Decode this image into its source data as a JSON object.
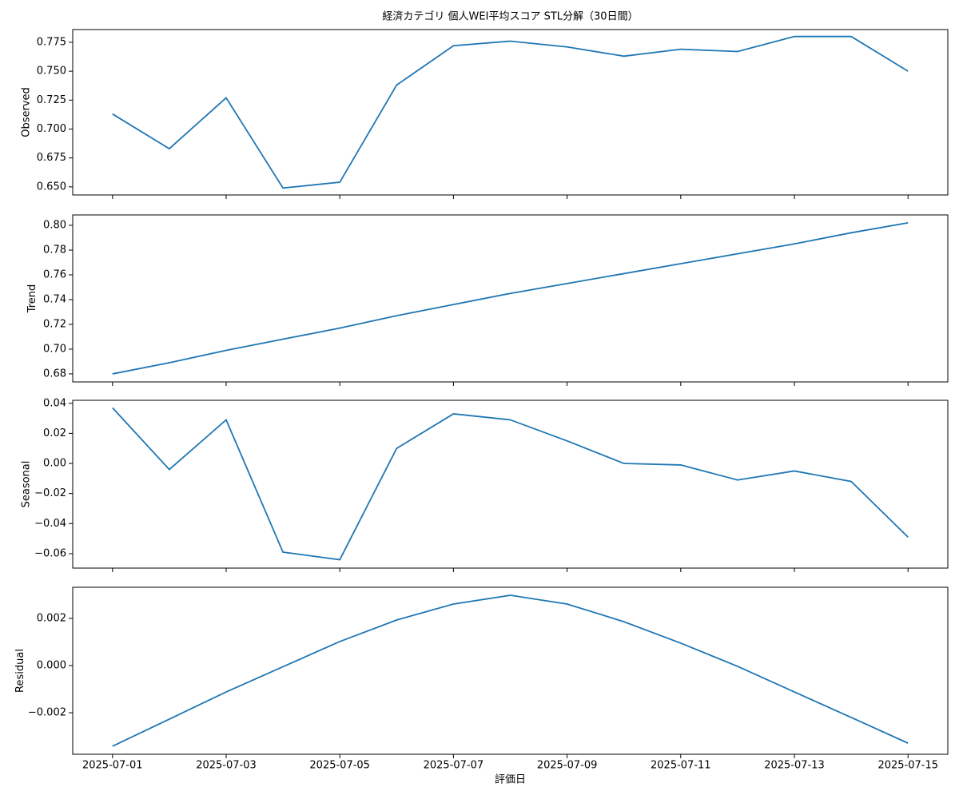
{
  "chart_data": [
    {
      "type": "line",
      "title": "経済カテゴリ 個人WEI平均スコア STL分解（30日間）",
      "ylabel": "Observed",
      "x": [
        "2025-07-01",
        "2025-07-02",
        "2025-07-03",
        "2025-07-04",
        "2025-07-05",
        "2025-07-06",
        "2025-07-07",
        "2025-07-08",
        "2025-07-09",
        "2025-07-10",
        "2025-07-11",
        "2025-07-12",
        "2025-07-13",
        "2025-07-14",
        "2025-07-15"
      ],
      "values": [
        0.713,
        0.683,
        0.727,
        0.649,
        0.654,
        0.738,
        0.772,
        0.776,
        0.771,
        0.763,
        0.769,
        0.767,
        0.78,
        0.78,
        0.75
      ],
      "color": "#1f77b4",
      "ylim": [
        0.643,
        0.786
      ],
      "yticks": [
        {
          "value": 0.65,
          "label": "0.650"
        },
        0.675,
        {
          "value": 0.7,
          "label": "0.700"
        },
        0.725,
        {
          "value": 0.75,
          "label": "0.750"
        },
        0.775
      ]
    },
    {
      "type": "line",
      "ylabel": "Trend",
      "x": [
        "2025-07-01",
        "2025-07-02",
        "2025-07-03",
        "2025-07-04",
        "2025-07-05",
        "2025-07-06",
        "2025-07-07",
        "2025-07-08",
        "2025-07-09",
        "2025-07-10",
        "2025-07-11",
        "2025-07-12",
        "2025-07-13",
        "2025-07-14",
        "2025-07-15"
      ],
      "values": [
        0.68,
        0.689,
        0.699,
        0.708,
        0.717,
        0.727,
        0.736,
        0.745,
        0.753,
        0.761,
        0.769,
        0.777,
        0.785,
        0.794,
        0.802
      ],
      "color": "#1f77b4",
      "ylim": [
        0.6735,
        0.8084
      ],
      "yticks": [
        0.68,
        {
          "value": 0.7,
          "label": "0.70"
        },
        0.72,
        0.74,
        0.76,
        0.78,
        {
          "value": 0.8,
          "label": "0.80"
        }
      ]
    },
    {
      "type": "line",
      "ylabel": "Seasonal",
      "x": [
        "2025-07-01",
        "2025-07-02",
        "2025-07-03",
        "2025-07-04",
        "2025-07-05",
        "2025-07-06",
        "2025-07-07",
        "2025-07-08",
        "2025-07-09",
        "2025-07-10",
        "2025-07-11",
        "2025-07-12",
        "2025-07-13",
        "2025-07-14",
        "2025-07-15"
      ],
      "values": [
        0.037,
        -0.004,
        0.029,
        -0.059,
        -0.064,
        0.01,
        0.033,
        0.029,
        0.015,
        0.0,
        -0.001,
        -0.011,
        -0.005,
        -0.012,
        -0.049
      ],
      "color": "#1f77b4",
      "ylim": [
        -0.0696,
        0.042
      ],
      "yticks": [
        {
          "value": -0.06,
          "label": "−0.06"
        },
        {
          "value": -0.04,
          "label": "−0.04"
        },
        {
          "value": -0.02,
          "label": "−0.02"
        },
        {
          "value": 0,
          "label": "0.00"
        },
        0.02,
        0.04
      ]
    },
    {
      "type": "line",
      "ylabel": "Residual",
      "xlabel": "評価日",
      "x": [
        "2025-07-01",
        "2025-07-02",
        "2025-07-03",
        "2025-07-04",
        "2025-07-05",
        "2025-07-06",
        "2025-07-07",
        "2025-07-08",
        "2025-07-09",
        "2025-07-10",
        "2025-07-11",
        "2025-07-12",
        "2025-07-13",
        "2025-07-14",
        "2025-07-15"
      ],
      "values": [
        -0.00342,
        -0.00227,
        -0.00112,
        -5e-05,
        0.00102,
        0.00193,
        0.00261,
        0.00298,
        0.00261,
        0.00186,
        0.00095,
        -3e-05,
        -0.00112,
        -0.0022,
        -0.00329
      ],
      "color": "#1f77b4",
      "ylim": [
        -0.00376,
        0.00332
      ],
      "yticks": [
        {
          "value": -0.002,
          "label": "−0.002"
        },
        {
          "value": 0,
          "label": "0.000"
        },
        0.002
      ],
      "xticks": [
        "2025-07-01",
        "2025-07-03",
        "2025-07-05",
        "2025-07-07",
        "2025-07-09",
        "2025-07-11",
        "2025-07-13",
        "2025-07-15"
      ]
    }
  ]
}
